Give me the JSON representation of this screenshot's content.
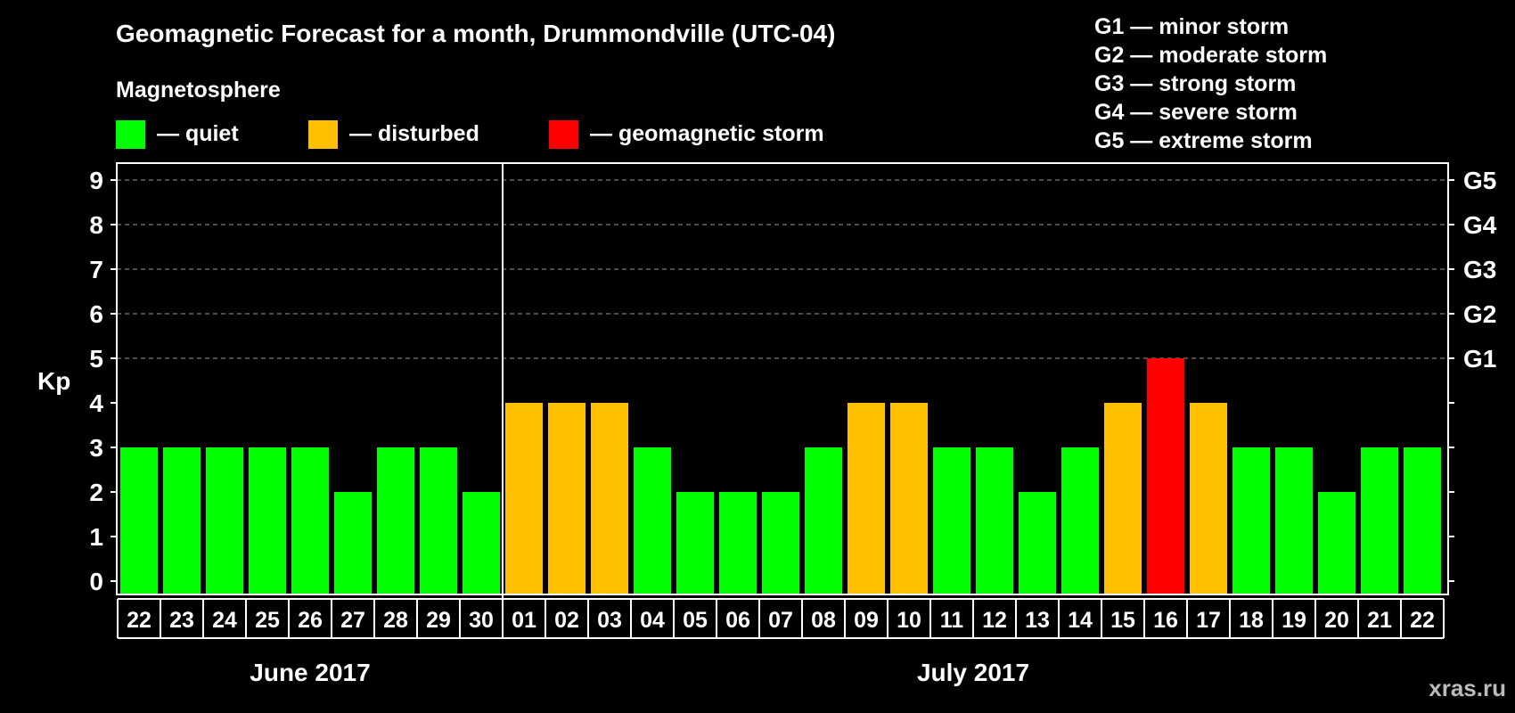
{
  "chart_data": {
    "type": "bar",
    "title": "Geomagnetic Forecast for a month, Drummondville (UTC-04)",
    "ylabel": "Kp",
    "ylim": [
      0,
      9
    ],
    "y_ticks": [
      "0",
      "1",
      "2",
      "3",
      "4",
      "5",
      "6",
      "7",
      "8",
      "9"
    ],
    "right_ticks": [
      {
        "kp": 5,
        "label": "G1"
      },
      {
        "kp": 6,
        "label": "G2"
      },
      {
        "kp": 7,
        "label": "G3"
      },
      {
        "kp": 8,
        "label": "G4"
      },
      {
        "kp": 9,
        "label": "G5"
      }
    ],
    "categories": [
      "22",
      "23",
      "24",
      "25",
      "26",
      "27",
      "28",
      "29",
      "30",
      "01",
      "02",
      "03",
      "04",
      "05",
      "06",
      "07",
      "08",
      "09",
      "10",
      "11",
      "12",
      "13",
      "14",
      "15",
      "16",
      "17",
      "18",
      "19",
      "20",
      "21",
      "22"
    ],
    "values": [
      3,
      3,
      3,
      3,
      3,
      2,
      3,
      3,
      2,
      4,
      4,
      4,
      3,
      2,
      2,
      2,
      3,
      4,
      4,
      3,
      3,
      2,
      3,
      4,
      5,
      4,
      3,
      3,
      2,
      3,
      3
    ],
    "months": [
      {
        "label": "June 2017",
        "start": 0,
        "end": 8
      },
      {
        "label": "July 2017",
        "start": 9,
        "end": 30
      }
    ],
    "legend": {
      "heading": "Magnetosphere",
      "items": [
        {
          "key": "quiet",
          "label": "— quiet",
          "color": "#00ff00"
        },
        {
          "key": "disturbed",
          "label": "— disturbed",
          "color": "#ffc000"
        },
        {
          "key": "storm",
          "label": "— geomagnetic storm",
          "color": "#ff0000"
        }
      ]
    },
    "scale_legend": [
      "G1 — minor storm",
      "G2 — moderate storm",
      "G3 — strong storm",
      "G4 — severe storm",
      "G5 — extreme storm"
    ]
  },
  "watermark": "xras.ru"
}
